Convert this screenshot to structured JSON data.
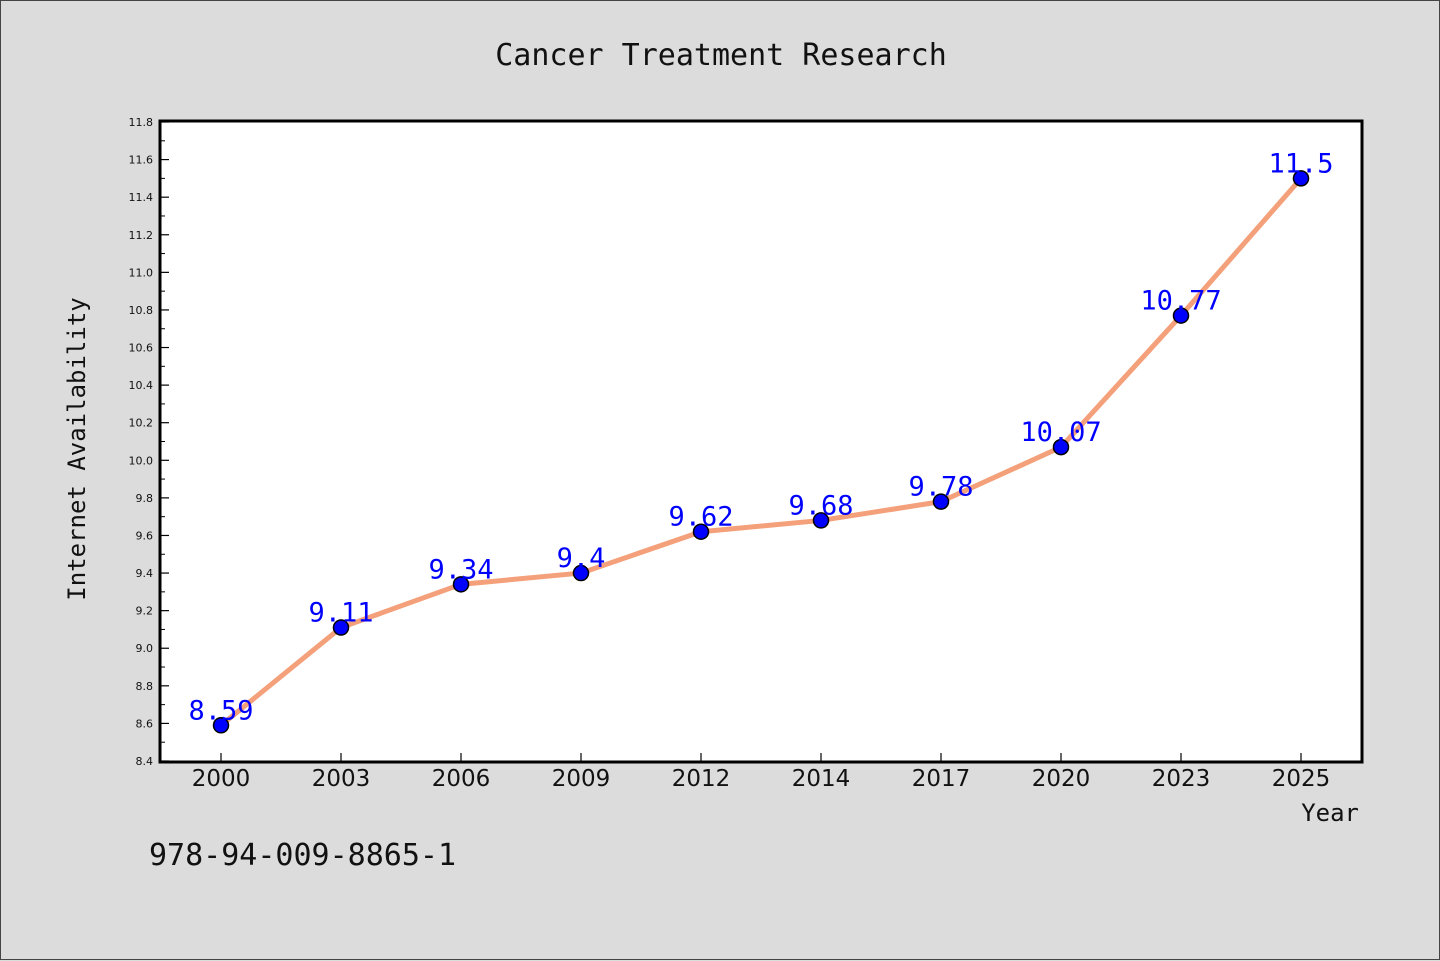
{
  "chart_data": {
    "type": "line",
    "title": "Cancer Treatment Research",
    "xlabel": "Year",
    "ylabel": "Internet Availability",
    "categories": [
      "2000",
      "2003",
      "2006",
      "2009",
      "2012",
      "2014",
      "2017",
      "2020",
      "2023",
      "2025"
    ],
    "series": [
      {
        "values": [
          8.59,
          9.11,
          9.34,
          9.4,
          9.62,
          9.68,
          9.78,
          10.07,
          10.77,
          11.5
        ],
        "labels": [
          "8.59",
          "9.11",
          "9.34",
          "9.4",
          "9.62",
          "9.68",
          "9.78",
          "10.07",
          "10.77",
          "11.5"
        ],
        "line_color": "#f4a07a",
        "marker_color": "#0000ff"
      }
    ],
    "ylim": [
      8.4,
      11.8
    ],
    "yticks": [
      "8.4",
      "8.6",
      "8.8",
      "9.0",
      "9.2",
      "9.4",
      "9.6",
      "9.8",
      "10.0",
      "10.2",
      "10.4",
      "10.6",
      "10.8",
      "11.0",
      "11.2",
      "11.4",
      "11.6",
      "11.8"
    ],
    "grid": false,
    "legend": "none"
  },
  "footer": {
    "isbn": "978-94-009-8865-1"
  }
}
